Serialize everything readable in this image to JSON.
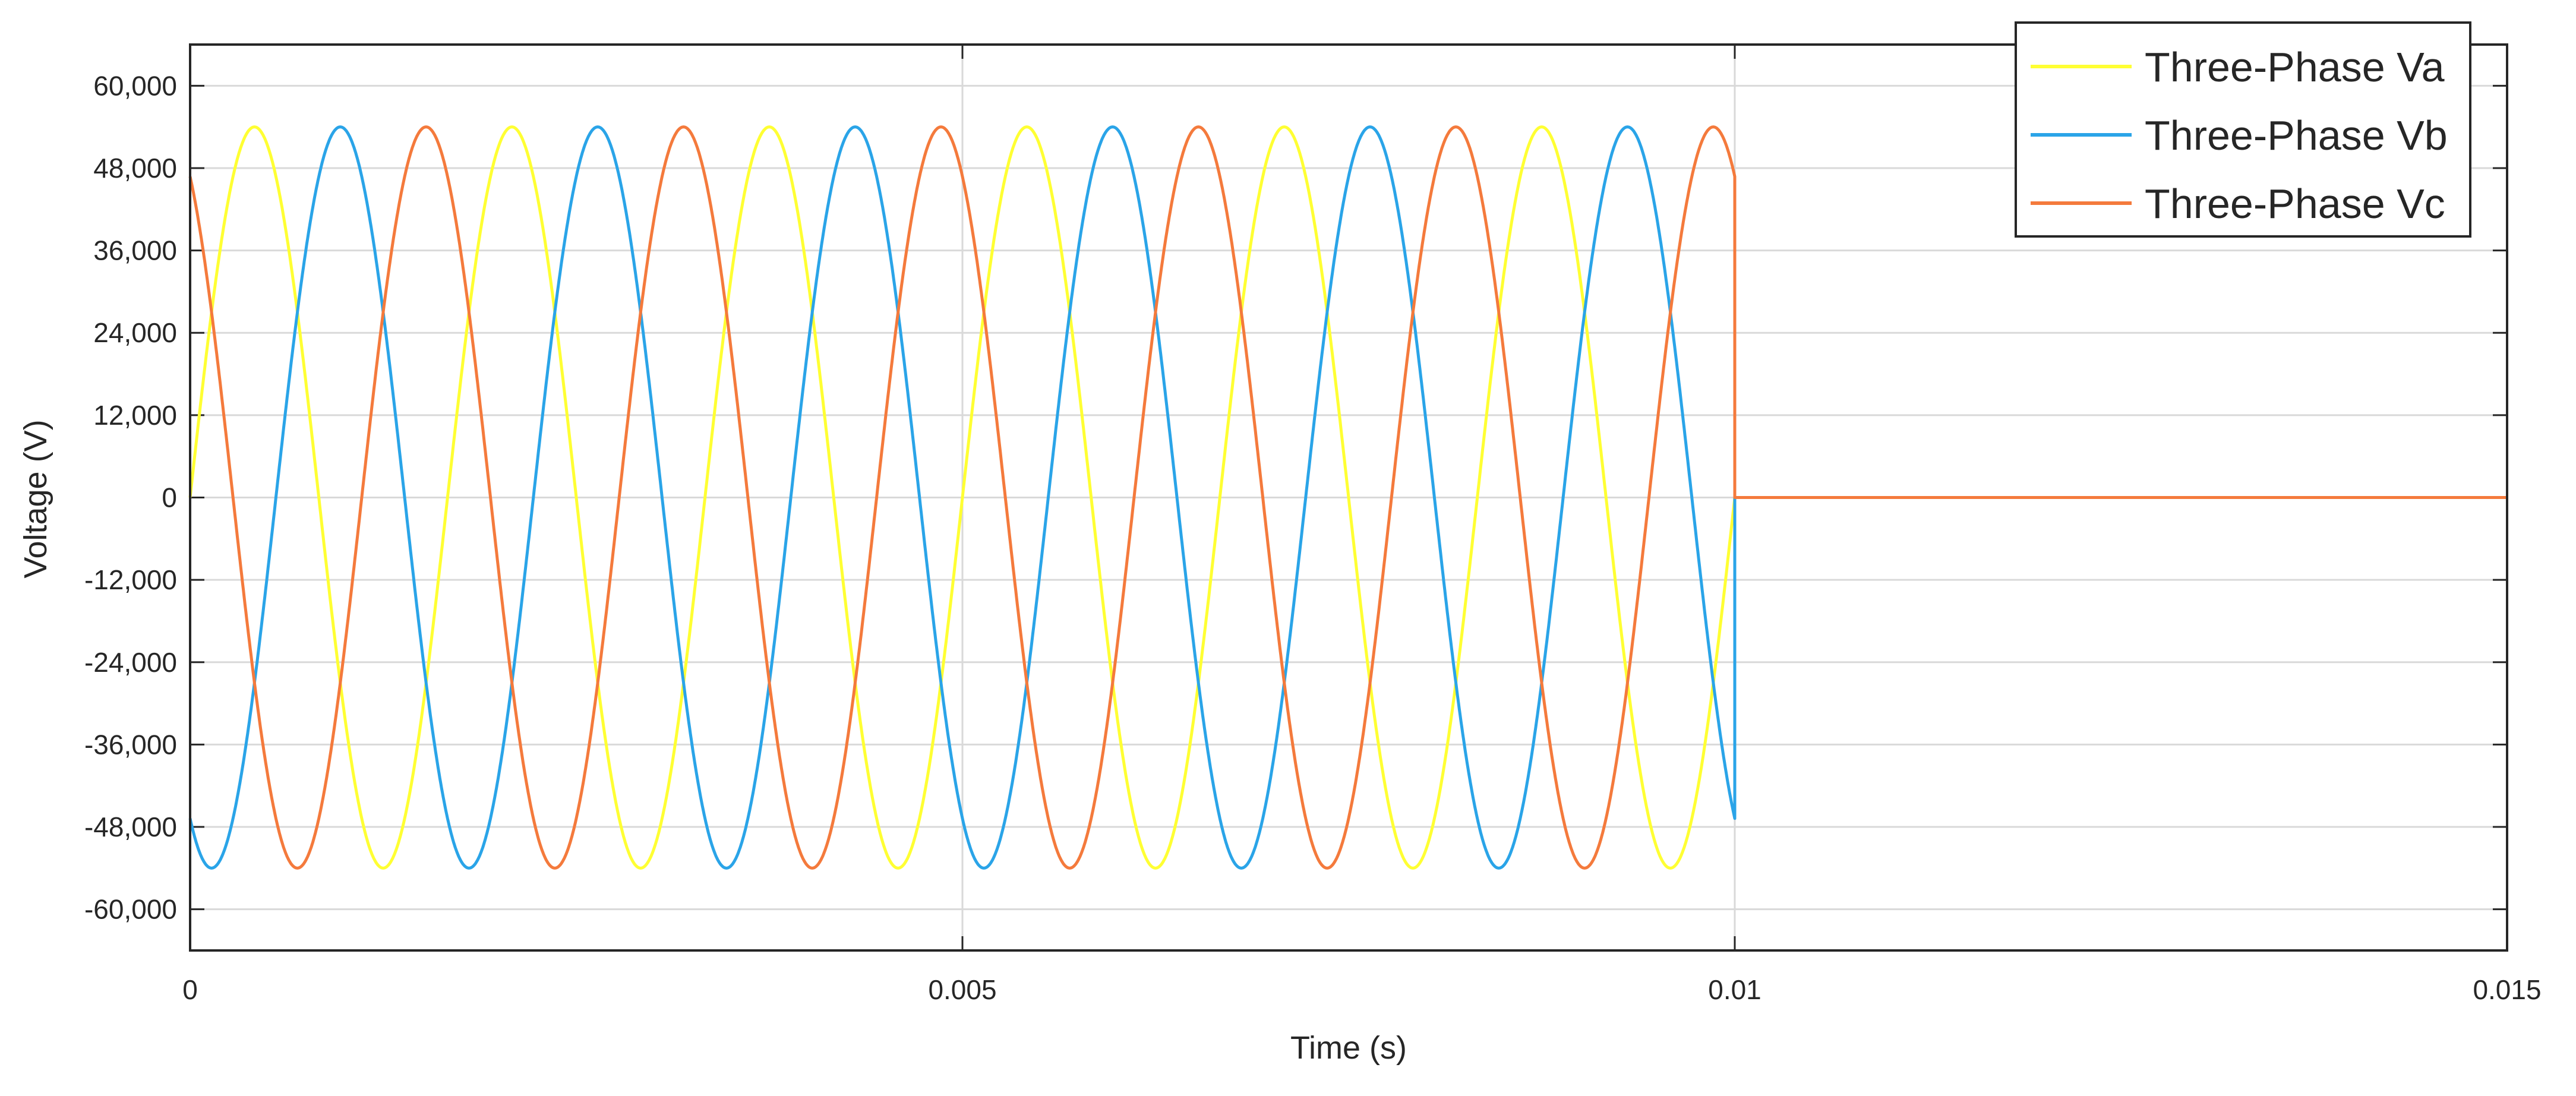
{
  "chart_data": {
    "type": "line",
    "title": "",
    "xlabel": "Time (s)",
    "ylabel": "Voltage (V)",
    "xlim": [
      0,
      0.015
    ],
    "ylim": [
      -66000,
      66000
    ],
    "x_ticks": [
      0,
      0.005,
      0.01,
      0.015
    ],
    "x_tick_labels": [
      "0",
      "0.005",
      "0.01",
      "0.015"
    ],
    "y_ticks": [
      60000,
      48000,
      36000,
      24000,
      12000,
      0,
      -12000,
      -24000,
      -36000,
      -48000,
      -60000
    ],
    "y_tick_labels": [
      "60,000",
      "48,000",
      "36,000",
      "24,000",
      "12,000",
      "0",
      "-12,000",
      "-24,000",
      "-36,000",
      "-48,000",
      "-60,000"
    ],
    "grid": true,
    "legend_position": "top-right",
    "series": [
      {
        "name": "Three-Phase Va",
        "color": "#ffff33",
        "amplitude": 54000,
        "frequency_hz": 600,
        "phase_deg": 0,
        "t_start": 0,
        "t_cutoff": 0.01,
        "value_after_cutoff": 0
      },
      {
        "name": "Three-Phase Vb",
        "color": "#2aa4e8",
        "amplitude": 54000,
        "frequency_hz": 600,
        "phase_deg": -120,
        "t_start": 0,
        "t_cutoff": 0.01,
        "value_after_cutoff": 0
      },
      {
        "name": "Three-Phase Vc",
        "color": "#f47a3c",
        "amplitude": 54000,
        "frequency_hz": 600,
        "phase_deg": 120,
        "t_start": 0,
        "t_cutoff": 0.01,
        "value_after_cutoff": 0
      }
    ]
  }
}
